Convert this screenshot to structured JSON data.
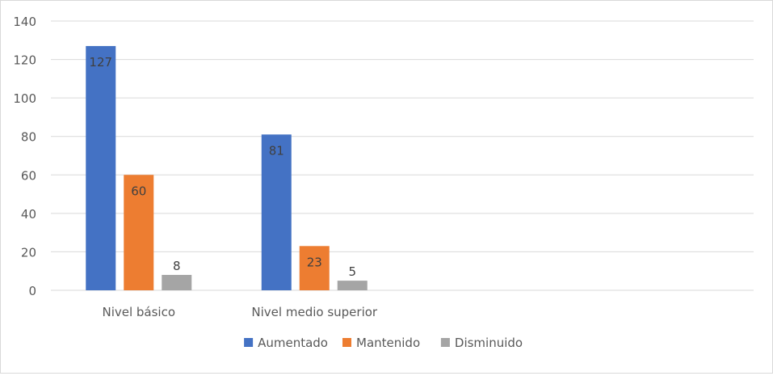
{
  "chart_data": {
    "type": "bar",
    "title": "",
    "xlabel": "",
    "ylabel": "",
    "categories": [
      "Nivel básico",
      "Nivel medio superior",
      "",
      ""
    ],
    "series": [
      {
        "name": "Aumentado",
        "values": [
          127,
          81,
          null,
          null
        ],
        "color": "#4472C4"
      },
      {
        "name": "Mantenido",
        "values": [
          60,
          23,
          null,
          null
        ],
        "color": "#ED7D31"
      },
      {
        "name": "Disminuido",
        "values": [
          8,
          5,
          null,
          null
        ],
        "color": "#A5A5A5"
      }
    ],
    "ylim": [
      0,
      140
    ],
    "yticks": [
      "0",
      "20",
      "40",
      "60",
      "80",
      "100",
      "120",
      "140"
    ],
    "grid": true,
    "legend_position": "bottom",
    "data_labels": true
  }
}
